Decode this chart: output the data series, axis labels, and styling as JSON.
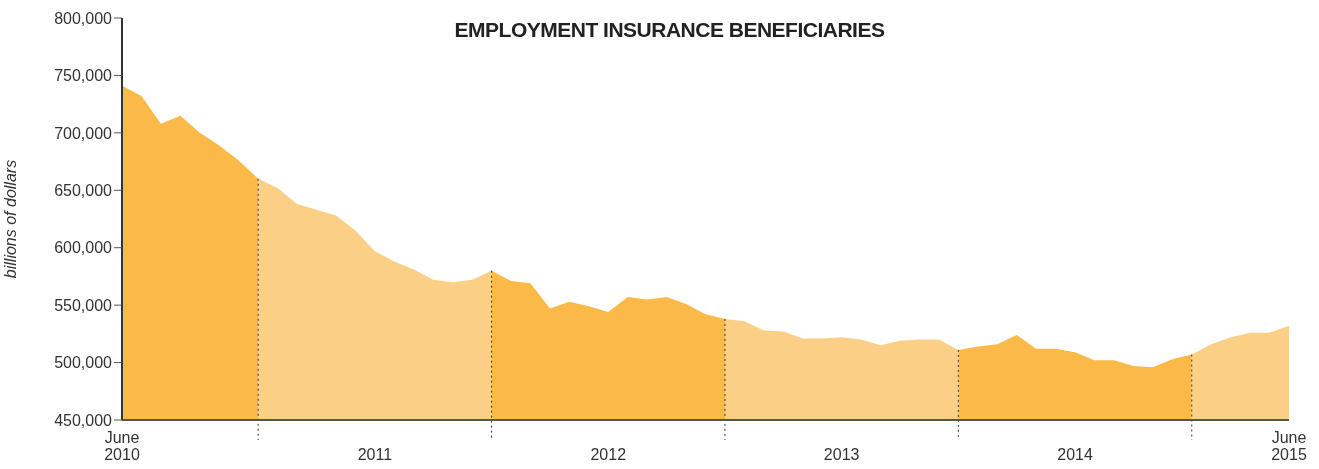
{
  "chart_data": {
    "type": "area",
    "title": "EMPLOYMENT INSURANCE BENEFICIARIES",
    "ylabel": "billions of dollars",
    "series": [
      {
        "color": "#fbb947",
        "x": [
          "2010-06",
          "2010-07",
          "2010-08",
          "2010-09",
          "2010-10",
          "2010-11",
          "2010-12",
          "2011-01"
        ],
        "values": [
          741000,
          732000,
          708000,
          715000,
          700000,
          689000,
          676000,
          660000
        ]
      },
      {
        "color": "#fbd086",
        "x": [
          "2011-01",
          "2011-02",
          "2011-03",
          "2011-04",
          "2011-05",
          "2011-06",
          "2011-07",
          "2011-08",
          "2011-09",
          "2011-10",
          "2011-11",
          "2011-12",
          "2012-01"
        ],
        "values": [
          660000,
          652000,
          638000,
          633000,
          628000,
          615000,
          597000,
          588000,
          581000,
          572000,
          570000,
          572000,
          580000
        ]
      },
      {
        "color": "#fbb947",
        "x": [
          "2012-01",
          "2012-02",
          "2012-03",
          "2012-04",
          "2012-05",
          "2012-06",
          "2012-07",
          "2012-08",
          "2012-09",
          "2012-10",
          "2012-11",
          "2012-12",
          "2013-01"
        ],
        "values": [
          580000,
          571000,
          569000,
          547000,
          553000,
          549000,
          544000,
          557000,
          555000,
          557000,
          551000,
          542000,
          538000
        ]
      },
      {
        "color": "#fbd086",
        "x": [
          "2013-01",
          "2013-02",
          "2013-03",
          "2013-04",
          "2013-05",
          "2013-06",
          "2013-07",
          "2013-08",
          "2013-09",
          "2013-10",
          "2013-11",
          "2013-12",
          "2014-01"
        ],
        "values": [
          538000,
          536000,
          528000,
          527000,
          521000,
          521000,
          522000,
          520000,
          515000,
          519000,
          520000,
          520000,
          511000
        ]
      },
      {
        "color": "#fbb947",
        "x": [
          "2014-01",
          "2014-02",
          "2014-03",
          "2014-04",
          "2014-05",
          "2014-06",
          "2014-07",
          "2014-08",
          "2014-09",
          "2014-10",
          "2014-11",
          "2014-12",
          "2015-01"
        ],
        "values": [
          511000,
          514000,
          516000,
          524000,
          512000,
          512000,
          509000,
          502000,
          502000,
          497000,
          496000,
          503000,
          507000
        ]
      },
      {
        "color": "#fbd086",
        "x": [
          "2015-01",
          "2015-02",
          "2015-03",
          "2015-04",
          "2015-05",
          "2015-06"
        ],
        "values": [
          507000,
          516000,
          522000,
          526000,
          526000,
          532000
        ]
      }
    ],
    "xlim": [
      "2010-06",
      "2015-06"
    ],
    "xticks": [
      {
        "value": "2010-06",
        "label": "June 2010"
      },
      {
        "value": "2011-07",
        "label": "2011"
      },
      {
        "value": "2012-07",
        "label": "2012"
      },
      {
        "value": "2013-07",
        "label": "2013"
      },
      {
        "value": "2014-07",
        "label": "2014"
      },
      {
        "value": "2015-06",
        "label": "June 2015"
      }
    ],
    "ylim": [
      450000,
      800000
    ],
    "yticks": [
      {
        "value": 450000,
        "label": "450,000"
      },
      {
        "value": 500000,
        "label": "500,000"
      },
      {
        "value": 550000,
        "label": "550,000"
      },
      {
        "value": 600000,
        "label": "600,000"
      },
      {
        "value": 650000,
        "label": "650,000"
      },
      {
        "value": 700000,
        "label": "700,000"
      },
      {
        "value": 750000,
        "label": "750,000"
      },
      {
        "value": 800000,
        "label": "800,000"
      }
    ],
    "ref_lines": [
      {
        "axis": "x",
        "value": "2011-01",
        "line_style": "dotted",
        "color": "#333333"
      },
      {
        "axis": "x",
        "value": "2012-01",
        "line_style": "dotted",
        "color": "#333333"
      },
      {
        "axis": "x",
        "value": "2013-01",
        "line_style": "dotted",
        "color": "#333333"
      },
      {
        "axis": "x",
        "value": "2014-01",
        "line_style": "dotted",
        "color": "#333333"
      },
      {
        "axis": "x",
        "value": "2015-01",
        "line_style": "dotted",
        "color": "#333333"
      }
    ],
    "grid": false,
    "legend": false
  }
}
